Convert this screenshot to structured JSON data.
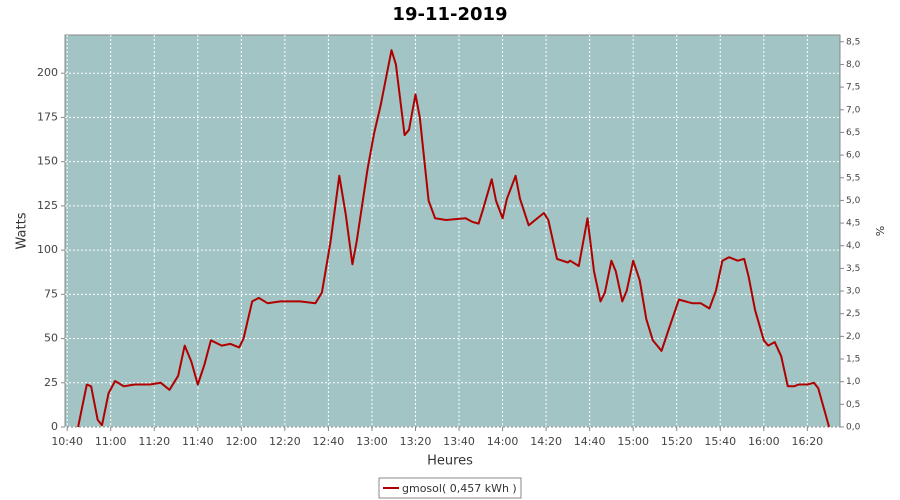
{
  "chart_data": {
    "type": "line",
    "title": "19-11-2019",
    "x_label": "Heures",
    "y_label": "Watts",
    "y2_label": "%",
    "x": [
      "10:45",
      "10:49",
      "10:51",
      "10:54",
      "10:56",
      "10:59",
      "11:02",
      "11:06",
      "11:11",
      "11:18",
      "11:23",
      "11:27",
      "11:31",
      "11:34",
      "11:37",
      "11:40",
      "11:43",
      "11:46",
      "11:51",
      "11:55",
      "11:59",
      "12:01",
      "12:05",
      "12:08",
      "12:12",
      "12:18",
      "12:27",
      "12:34",
      "12:37",
      "12:41",
      "12:45",
      "12:48",
      "12:51",
      "12:53",
      "12:58",
      "13:01",
      "13:04",
      "13:09",
      "13:11",
      "13:15",
      "13:17",
      "13:20",
      "13:22",
      "13:26",
      "13:29",
      "13:34",
      "13:43",
      "13:46",
      "13:49",
      "13:51",
      "13:55",
      "13:57",
      "14:00",
      "14:02",
      "14:06",
      "14:08",
      "14:12",
      "14:15",
      "14:19",
      "14:21",
      "14:25",
      "14:30",
      "14:31",
      "14:35",
      "14:39",
      "14:42",
      "14:45",
      "14:47",
      "14:50",
      "14:52",
      "14:55",
      "14:57",
      "15:00",
      "15:03",
      "15:06",
      "15:09",
      "15:13",
      "15:16",
      "15:21",
      "15:27",
      "15:31",
      "15:35",
      "15:38",
      "15:41",
      "15:44",
      "15:48",
      "15:51",
      "15:53",
      "15:56",
      "16:00",
      "16:02",
      "16:05",
      "16:08",
      "16:11",
      "16:14",
      "16:16",
      "16:20",
      "16:23",
      "16:25",
      "16:30"
    ],
    "series": [
      {
        "name": "gmosol( 0,457 kWh )",
        "color": "#b00000",
        "values": [
          0,
          24,
          23,
          4,
          1,
          19,
          26,
          23,
          24,
          24,
          25,
          21,
          29,
          46,
          37,
          24,
          35,
          49,
          46,
          47,
          45,
          50,
          71,
          73,
          70,
          71,
          71,
          70,
          76,
          105,
          142,
          120,
          92,
          105,
          146,
          166,
          182,
          213,
          205,
          165,
          168,
          188,
          175,
          128,
          118,
          117,
          118,
          116,
          115,
          123,
          140,
          128,
          118,
          129,
          142,
          129,
          114,
          117,
          121,
          117,
          95,
          93,
          94,
          91,
          118,
          88,
          71,
          76,
          94,
          88,
          71,
          77,
          94,
          83,
          61,
          49,
          43,
          54,
          72,
          70,
          70,
          67,
          77,
          94,
          96,
          94,
          95,
          85,
          66,
          49,
          46,
          48,
          40,
          23,
          23,
          24,
          24,
          25,
          22,
          0
        ]
      }
    ],
    "xlim": [
      "10:39",
      "16:35"
    ],
    "xticks": [
      "10:40",
      "11:00",
      "11:20",
      "11:40",
      "12:00",
      "12:20",
      "12:40",
      "13:00",
      "13:20",
      "13:40",
      "14:00",
      "14:20",
      "14:40",
      "15:00",
      "15:20",
      "15:40",
      "16:00",
      "16:20"
    ],
    "ylim": [
      0,
      221.6
    ],
    "yticks": [
      0,
      25,
      50,
      75,
      100,
      125,
      150,
      175,
      200
    ],
    "y2lim": [
      0,
      8.65
    ],
    "y2ticks": [
      {
        "value": 0,
        "label": "0,0"
      },
      {
        "value": 0.5,
        "label": "0,5"
      },
      {
        "value": 1,
        "label": "1,0"
      },
      {
        "value": 1.5,
        "label": "1,5"
      },
      {
        "value": 2,
        "label": "2,0"
      },
      {
        "value": 2.5,
        "label": "2,5"
      },
      {
        "value": 3,
        "label": "3,0"
      },
      {
        "value": 3.5,
        "label": "3,5"
      },
      {
        "value": 4,
        "label": "4,0"
      },
      {
        "value": 4.5,
        "label": "4,5"
      },
      {
        "value": 5,
        "label": "5,0"
      },
      {
        "value": 5.5,
        "label": "5,5"
      },
      {
        "value": 6,
        "label": "6,0"
      },
      {
        "value": 6.5,
        "label": "6,5"
      },
      {
        "value": 7,
        "label": "7,0"
      },
      {
        "value": 7.5,
        "label": "7,5"
      },
      {
        "value": 8,
        "label": "8,0"
      },
      {
        "value": 8.5,
        "label": "8,5"
      }
    ],
    "grid": true,
    "plot_background": "#a2c4c4"
  }
}
